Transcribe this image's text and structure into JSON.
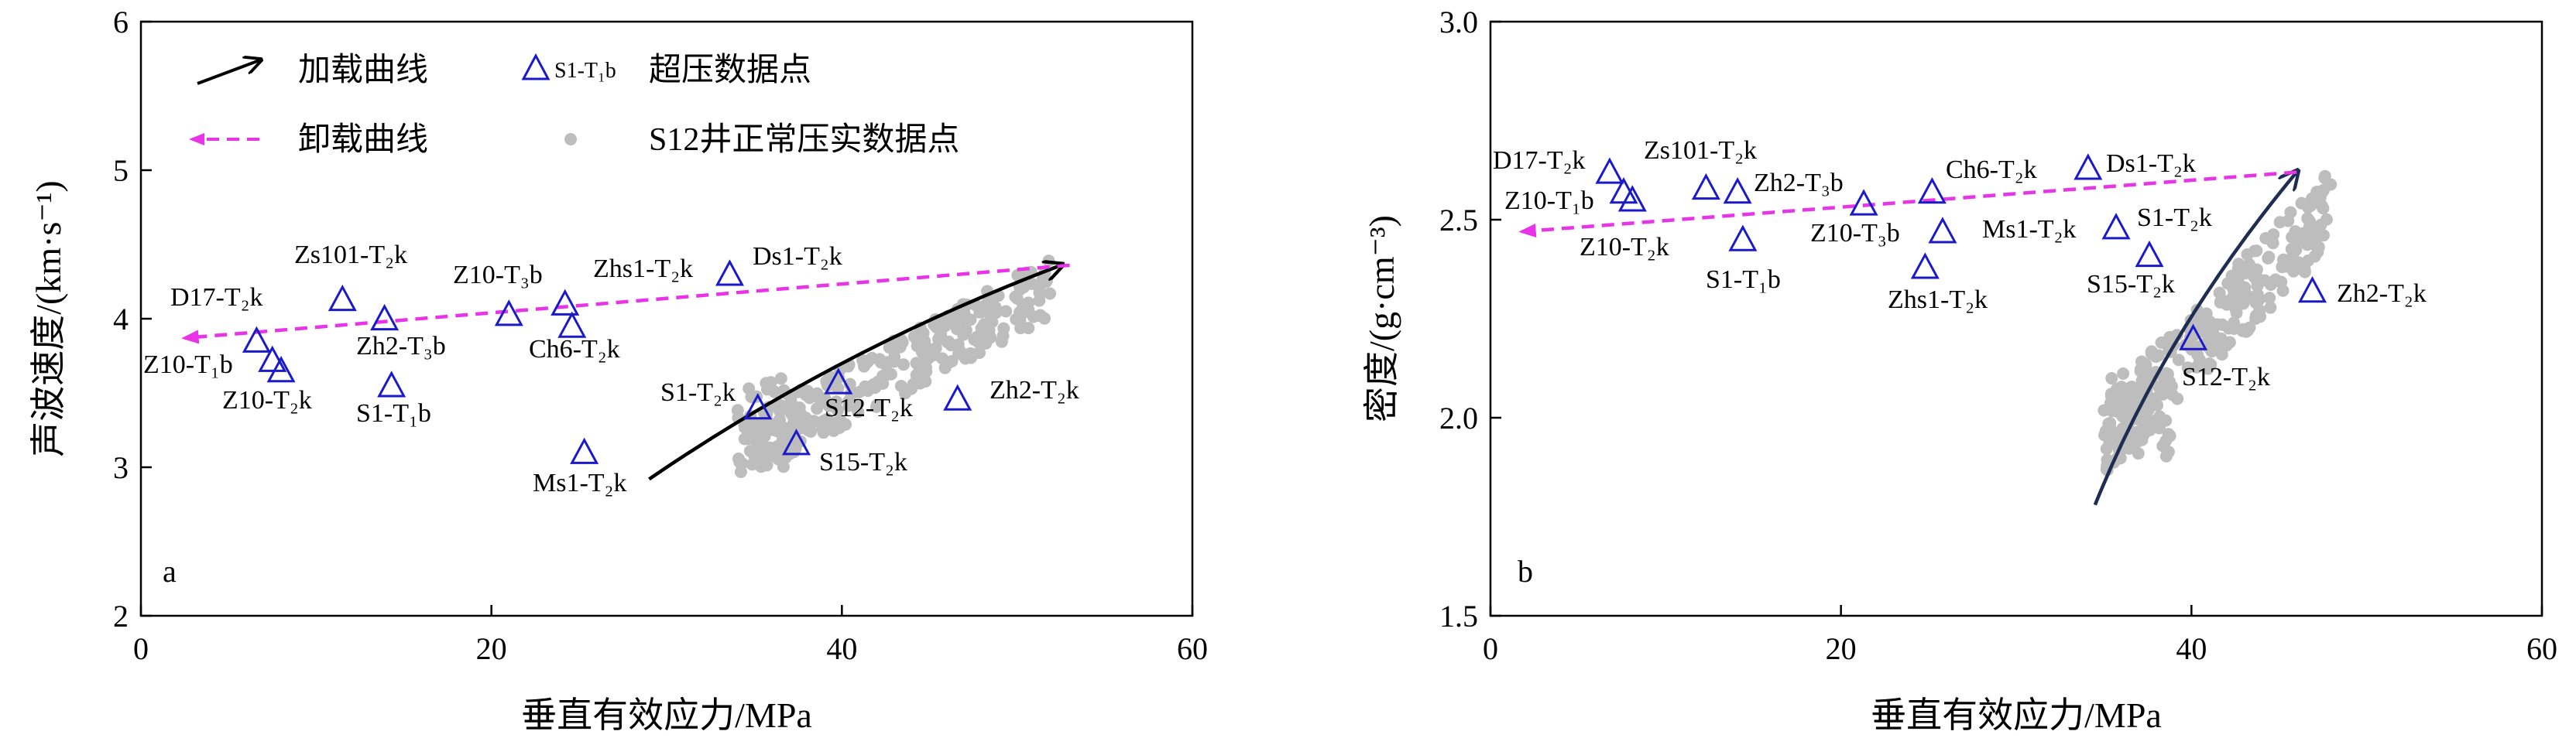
{
  "chart_data": [
    {
      "type": "scatter",
      "panel_label": "a",
      "xlabel": "垂直有效应力/MPa",
      "ylabel": "声波速度/(km·s⁻¹)",
      "xlim": [
        0,
        60
      ],
      "ylim": [
        2,
        6
      ],
      "xticks": [
        0,
        20,
        40,
        60
      ],
      "yticks": [
        2,
        3,
        4,
        5,
        6
      ],
      "legend": {
        "placement": "top-left",
        "loading_curve": "加载曲线",
        "unloading_curve": "卸载曲线",
        "overpressure_symbol": "S1-T₁b",
        "overpressure_points": "超压数据点",
        "normal_points": "S12井正常压实数据点"
      },
      "loading_curve": {
        "start": [
          29,
          2.92
        ],
        "end": [
          52.5,
          4.36
        ],
        "color": "#000000"
      },
      "unloading_curve": {
        "start": [
          53,
          4.36
        ],
        "end": [
          2.5,
          3.87
        ],
        "color": "#e833e8"
      },
      "overpressure_points": [
        {
          "name": "D17-T₂k",
          "x": 6.6,
          "y": 3.85
        },
        {
          "name": "Z10-T₁b",
          "x": 7.5,
          "y": 3.72
        },
        {
          "name": "Z10-T₂k",
          "x": 8.0,
          "y": 3.65
        },
        {
          "name": "Zs101-T₂k",
          "x": 11.5,
          "y": 4.13
        },
        {
          "name": "Zh2-T₃b",
          "x": 13.9,
          "y": 4.0
        },
        {
          "name": "S1-T₁b",
          "x": 14.3,
          "y": 3.55
        },
        {
          "name": "Z10-T₃b",
          "x": 21.0,
          "y": 4.03
        },
        {
          "name": "Zhs1-T₂k",
          "x": 24.2,
          "y": 4.1
        },
        {
          "name": "Ch6-T₂k",
          "x": 24.6,
          "y": 3.95
        },
        {
          "name": "Ms1-T₂k",
          "x": 25.3,
          "y": 3.1
        },
        {
          "name": "Ds1-T₂k",
          "x": 33.6,
          "y": 4.3
        },
        {
          "name": "S1-T₂k",
          "x": 35.2,
          "y": 3.4
        },
        {
          "name": "S15-T₂k",
          "x": 37.4,
          "y": 3.16
        },
        {
          "name": "S12-T₂k",
          "x": 39.8,
          "y": 3.57
        },
        {
          "name": "Zh2-T₂k",
          "x": 46.6,
          "y": 3.46
        }
      ],
      "colors": {
        "overpressure": "#1a1ac8",
        "normal": "#bdbdbd",
        "loading": "#000000",
        "unloading": "#e833e8"
      }
    },
    {
      "type": "scatter",
      "panel_label": "b",
      "xlabel": "垂直有效应力/MPa",
      "ylabel": "密度/(g·cm⁻³)",
      "xlim": [
        0,
        60
      ],
      "ylim": [
        1.5,
        3.0
      ],
      "xticks": [
        0,
        20,
        40,
        60
      ],
      "yticks": [
        1.5,
        2.0,
        2.5,
        3.0
      ],
      "loading_curve": {
        "start": [
          34.5,
          1.78
        ],
        "end": [
          46.0,
          2.62
        ],
        "color": "#1f2d52"
      },
      "unloading_curve": {
        "start": [
          46.0,
          2.62
        ],
        "end": [
          1.8,
          2.47
        ],
        "color": "#e833e8"
      },
      "overpressure_points": [
        {
          "name": "D17-T₂k",
          "x": 6.8,
          "y": 2.62
        },
        {
          "name": "Z10-T₁b",
          "x": 7.6,
          "y": 2.57
        },
        {
          "name": "Z10-T₂k",
          "x": 8.1,
          "y": 2.55
        },
        {
          "name": "Zs101-T₂k",
          "x": 12.3,
          "y": 2.58
        },
        {
          "name": "Zh2-T₃b",
          "x": 14.1,
          "y": 2.57
        },
        {
          "name": "S1-T₁b",
          "x": 14.4,
          "y": 2.45
        },
        {
          "name": "Z10-T₃b",
          "x": 21.3,
          "y": 2.54
        },
        {
          "name": "Zhs1-T₂k",
          "x": 24.8,
          "y": 2.38
        },
        {
          "name": "Ch6-T₂k",
          "x": 25.2,
          "y": 2.57
        },
        {
          "name": "Ms1-T₂k",
          "x": 25.8,
          "y": 2.47
        },
        {
          "name": "Ds1-T₂k",
          "x": 34.1,
          "y": 2.63
        },
        {
          "name": "S1-T₂k",
          "x": 35.7,
          "y": 2.48
        },
        {
          "name": "S15-T₂k",
          "x": 37.6,
          "y": 2.41
        },
        {
          "name": "S12-T₂k",
          "x": 40.1,
          "y": 2.2
        },
        {
          "name": "Zh2-T₂k",
          "x": 46.9,
          "y": 2.32
        }
      ],
      "colors": {
        "overpressure": "#1a1ac8",
        "normal": "#bdbdbd",
        "loading": "#1f2d52",
        "unloading": "#e833e8"
      }
    }
  ]
}
